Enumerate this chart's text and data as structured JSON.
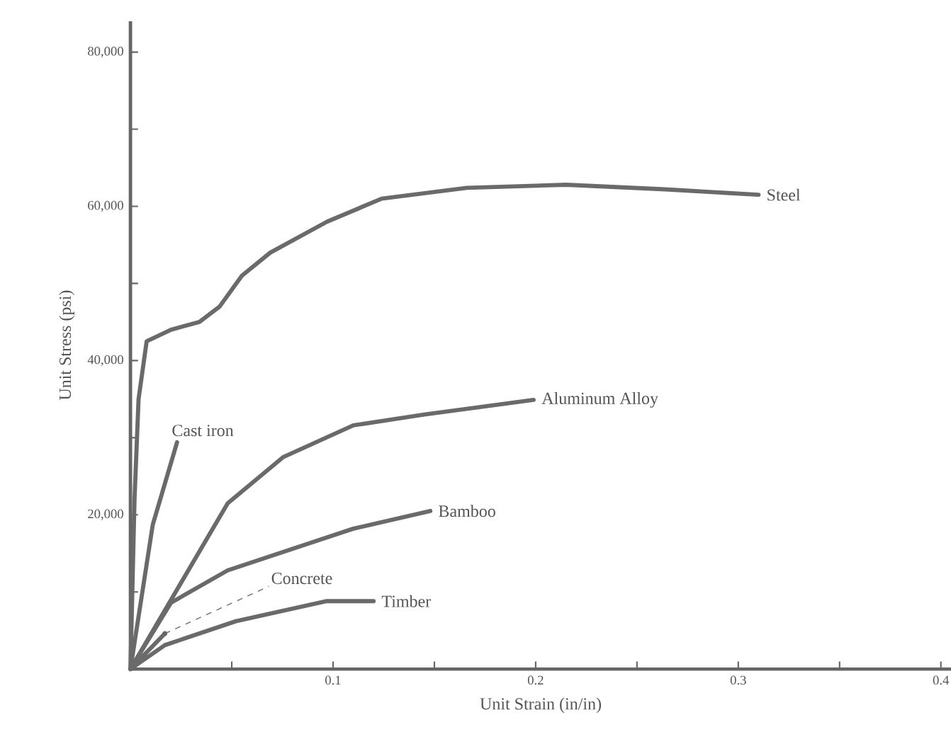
{
  "chart_data": {
    "type": "line",
    "xlabel": "Unit Strain (in/in)",
    "ylabel": "Unit Stress (psi)",
    "xlim": [
      0,
      0.405
    ],
    "ylim": [
      0,
      84000
    ],
    "xticks": [
      {
        "value": 0.05,
        "label": null
      },
      0.1,
      {
        "value": 0.15,
        "label": null
      },
      0.2,
      {
        "value": 0.25,
        "label": null
      },
      0.3,
      {
        "value": 0.35,
        "label": null
      },
      0.4
    ],
    "yticks": [
      {
        "value": 10000,
        "label": null
      },
      {
        "value": 20000,
        "label": "20,000"
      },
      {
        "value": 30000,
        "label": null
      },
      {
        "value": 40000,
        "label": "40,000"
      },
      {
        "value": 50000,
        "label": null
      },
      {
        "value": 60000,
        "label": "60,000"
      },
      {
        "value": 70000,
        "label": null
      },
      {
        "value": 80000,
        "label": "80,000"
      }
    ],
    "series": [
      {
        "name": "Steel",
        "color": "#6a6a6a",
        "x": [
          0,
          0.002,
          0.004,
          0.008,
          0.02,
          0.034,
          0.044,
          0.055,
          0.069,
          0.097,
          0.124,
          0.166,
          0.215,
          0.264,
          0.31
        ],
        "values": [
          0,
          22000,
          35000,
          42500,
          44000,
          45000,
          47000,
          51000,
          54000,
          58000,
          61000,
          62400,
          62800,
          62200,
          61500
        ]
      },
      {
        "name": "Cast iron",
        "color": "#6a6a6a",
        "x": [
          0,
          0.011,
          0.023
        ],
        "values": [
          0,
          18700,
          29400
        ]
      },
      {
        "name": "Aluminum Alloy",
        "color": "#6a6a6a",
        "x": [
          0,
          0.048,
          0.0755,
          0.11,
          0.145,
          0.199
        ],
        "values": [
          0,
          21500,
          27500,
          31600,
          33000,
          34900
        ]
      },
      {
        "name": "Bamboo",
        "color": "#6a6a6a",
        "x": [
          0,
          0.02,
          0.048,
          0.11,
          0.148
        ],
        "values": [
          0,
          8600,
          12800,
          18200,
          20500
        ]
      },
      {
        "name": "Concrete",
        "color": "#6a6a6a",
        "x": [
          0,
          0.017
        ],
        "values": [
          0,
          4600
        ]
      },
      {
        "name": "Timber",
        "color": "#6a6a6a",
        "x": [
          0,
          0.017,
          0.052,
          0.0965,
          0.12
        ],
        "values": [
          0,
          3100,
          6200,
          8800,
          8800
        ]
      }
    ]
  }
}
